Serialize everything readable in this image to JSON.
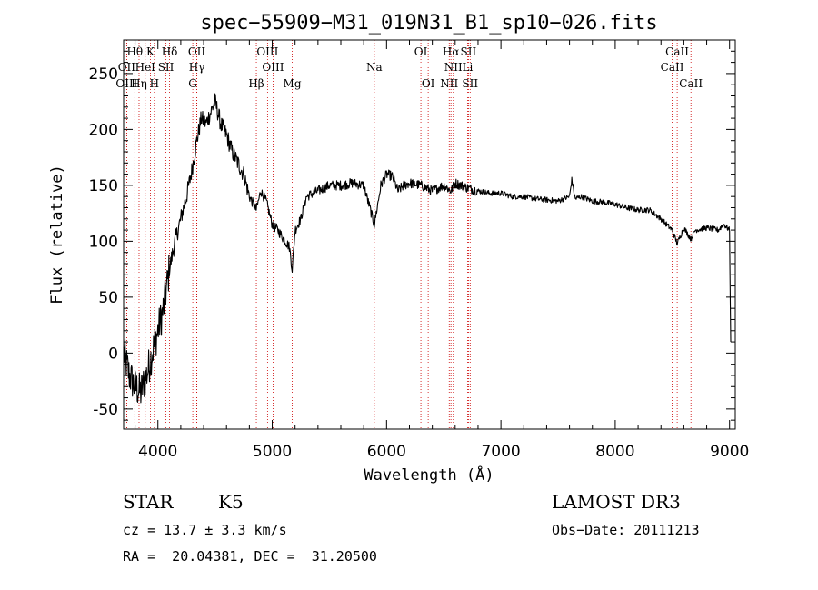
{
  "chart_data": {
    "type": "line",
    "title": "spec−55909−M31_019N31_B1_sp10−026.fits",
    "xlabel": "Wavelength (Å)",
    "ylabel": "Flux (relative)",
    "xlim": [
      3700,
      9050
    ],
    "ylim": [
      -68,
      280
    ],
    "xticks": [
      4000,
      5000,
      6000,
      7000,
      8000,
      9000
    ],
    "yticks": [
      -50,
      0,
      50,
      100,
      150,
      200,
      250
    ],
    "series": [
      {
        "name": "spectrum",
        "x": [
          3700,
          3750,
          3800,
          3850,
          3900,
          3950,
          4000,
          4050,
          4100,
          4150,
          4200,
          4250,
          4300,
          4340,
          4380,
          4420,
          4460,
          4500,
          4550,
          4600,
          4650,
          4700,
          4750,
          4800,
          4861,
          4900,
          4950,
          5000,
          5050,
          5100,
          5150,
          5175,
          5200,
          5250,
          5300,
          5400,
          5500,
          5600,
          5700,
          5800,
          5893,
          5950,
          6000,
          6050,
          6100,
          6150,
          6200,
          6300,
          6400,
          6500,
          6563,
          6600,
          6700,
          6800,
          6900,
          7000,
          7100,
          7200,
          7300,
          7400,
          7500,
          7600,
          7620,
          7650,
          7700,
          7800,
          7900,
          8000,
          8100,
          8200,
          8300,
          8400,
          8498,
          8542,
          8600,
          8662,
          8700,
          8800,
          8900,
          8950,
          9000,
          9010
        ],
        "y": [
          0,
          -20,
          -30,
          -35,
          -20,
          0,
          20,
          40,
          75,
          100,
          120,
          140,
          165,
          190,
          210,
          205,
          215,
          225,
          205,
          195,
          180,
          170,
          160,
          140,
          128,
          145,
          135,
          115,
          110,
          102,
          95,
          75,
          110,
          120,
          140,
          145,
          150,
          150,
          152,
          150,
          115,
          150,
          160,
          158,
          145,
          150,
          152,
          150,
          145,
          150,
          145,
          152,
          148,
          145,
          143,
          143,
          140,
          140,
          138,
          137,
          136,
          140,
          155,
          138,
          140,
          136,
          135,
          133,
          130,
          128,
          128,
          120,
          110,
          98,
          112,
          102,
          110,
          112,
          110,
          115,
          110,
          10
        ]
      }
    ],
    "spectral_lines": [
      {
        "name": "Hθ",
        "wavelength": 3798,
        "row": 1
      },
      {
        "name": "K",
        "wavelength": 3934,
        "row": 1
      },
      {
        "name": "Hδ",
        "wavelength": 4102,
        "row": 1
      },
      {
        "name": "OII",
        "wavelength": 4340,
        "row": 1
      },
      {
        "name": "OIII",
        "wavelength": 4959,
        "row": 1
      },
      {
        "name": "OI",
        "wavelength": 6300,
        "row": 1
      },
      {
        "name": "Hα",
        "wavelength": 6563,
        "row": 1
      },
      {
        "name": "SII",
        "wavelength": 6716,
        "row": 1
      },
      {
        "name": "CaII",
        "wavelength": 8542,
        "row": 1
      },
      {
        "name": "OII",
        "wavelength": 3727,
        "row": 2
      },
      {
        "name": "HeI",
        "wavelength": 3889,
        "row": 2
      },
      {
        "name": "SII",
        "wavelength": 4070,
        "row": 2
      },
      {
        "name": "Hγ",
        "wavelength": 4340,
        "row": 2
      },
      {
        "name": "OIII",
        "wavelength": 5007,
        "row": 2
      },
      {
        "name": "Na",
        "wavelength": 5893,
        "row": 2
      },
      {
        "name": "NII",
        "wavelength": 6584,
        "row": 2
      },
      {
        "name": "Li",
        "wavelength": 6708,
        "row": 2
      },
      {
        "name": "CaII",
        "wavelength": 8498,
        "row": 2
      },
      {
        "name": "OIII",
        "wavelength": 3727,
        "row": 3
      },
      {
        "name": "Hη",
        "wavelength": 3835,
        "row": 3
      },
      {
        "name": "H",
        "wavelength": 3969,
        "row": 3
      },
      {
        "name": "G",
        "wavelength": 4305,
        "row": 3
      },
      {
        "name": "Hβ",
        "wavelength": 4861,
        "row": 3
      },
      {
        "name": "Mg",
        "wavelength": 5175,
        "row": 3
      },
      {
        "name": "OI",
        "wavelength": 6364,
        "row": 3
      },
      {
        "name": "NII",
        "wavelength": 6548,
        "row": 3
      },
      {
        "name": "SII",
        "wavelength": 6731,
        "row": 3
      },
      {
        "name": "CaII",
        "wavelength": 8662,
        "row": 3
      }
    ],
    "colors": {
      "axis": "#000000",
      "series": "#000000",
      "line_markers": "#cc0000"
    }
  },
  "info": {
    "object_class": "STAR",
    "subclass": "K5",
    "survey": "LAMOST DR3",
    "redshift": "cz = 13.7 ± 3.3 km/s",
    "obs_date": "Obs−Date: 20111213",
    "coords": "RA =  20.04381, DEC =  31.20500"
  }
}
